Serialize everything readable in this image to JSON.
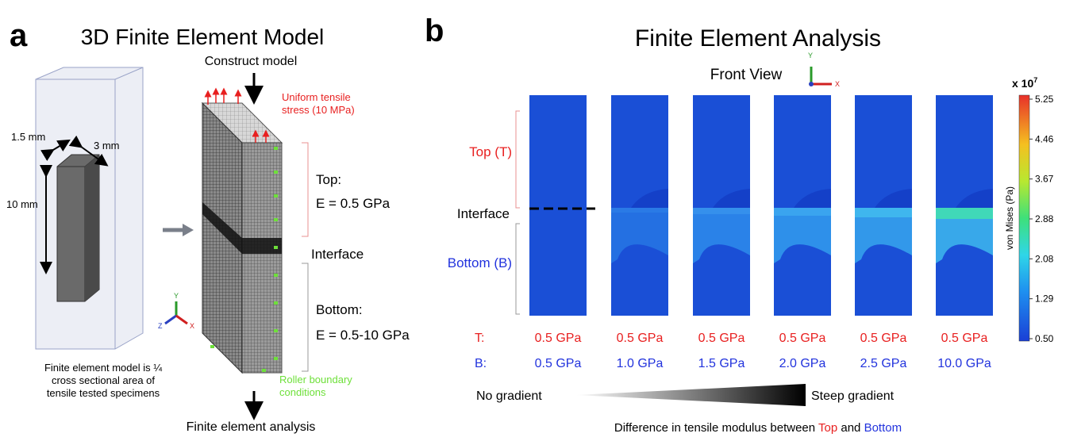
{
  "panel_a": {
    "label": "a",
    "title": "3D Finite Element Model",
    "construct": "Construct model",
    "dimensions": [
      "1.5 mm",
      "3 mm",
      "10 mm"
    ],
    "caption": [
      "Finite element model is ¼",
      "cross sectional area of",
      "tensile tested specimens"
    ],
    "stress": [
      "Uniform tensile",
      "stress (10 MPa)"
    ],
    "top": [
      "Top:",
      "E = 0.5 GPa"
    ],
    "interface": "Interface",
    "bottom": [
      "Bottom:",
      "E = 0.5-10 GPa"
    ],
    "roller": [
      "Roller boundary",
      "conditions"
    ],
    "analysis": "Finite element analysis",
    "axes": [
      "Y",
      "Z",
      "X"
    ]
  },
  "panel_b": {
    "label": "b",
    "title": "Finite Element Analysis",
    "view": "Front View",
    "axes": [
      "Y",
      "X"
    ],
    "regions": {
      "top": "Top (T)",
      "interface": "Interface",
      "bottom": "Bottom (B)"
    },
    "row_labels": [
      "T:",
      "B:"
    ],
    "top_values": [
      "0.5 GPa",
      "0.5 GPa",
      "0.5 GPa",
      "0.5 GPa",
      "0.5 GPa",
      "0.5 GPa"
    ],
    "bottom_values": [
      "0.5 GPa",
      "1.0 GPa",
      "1.5 GPa",
      "2.0 GPa",
      "2.5 GPa",
      "10.0 GPa"
    ],
    "colorbar": {
      "scale": "x 10",
      "exponent": "7",
      "unit": "von Mises (Pa)",
      "ticks": [
        "5.25",
        "4.46",
        "3.67",
        "2.88",
        "2.08",
        "1.29",
        "0.50"
      ]
    },
    "gradient": {
      "left": "No gradient",
      "right": "Steep gradient"
    },
    "caption": [
      "Difference in tensile modulus between ",
      "Top",
      " and ",
      "Bottom"
    ]
  }
}
